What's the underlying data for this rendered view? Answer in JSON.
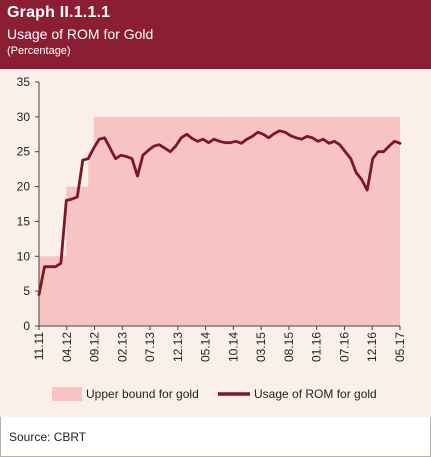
{
  "header": {
    "title": "Graph II.1.1.1",
    "subtitle": "Usage of ROM  for  Gold",
    "unit": "(Percentage)",
    "background": "#8b1e33"
  },
  "source": "Source: CBRT",
  "chart_data": {
    "type": "line",
    "xlabel": "",
    "ylabel": "",
    "ylim": [
      0,
      35
    ],
    "yticks": [
      0,
      5,
      10,
      15,
      20,
      25,
      30,
      35
    ],
    "x_range": [
      "2011-11",
      "2017-05"
    ],
    "xtick_labels": [
      "11.11",
      "04.12",
      "09.12",
      "02.13",
      "07.13",
      "12.13",
      "05.14",
      "10.14",
      "03.15",
      "08.15",
      "01.16",
      "07.16",
      "12.16",
      "05.17"
    ],
    "legend": {
      "placement": "bottom",
      "entries": [
        "Upper bound for gold",
        "Usage of ROM for gold"
      ]
    },
    "grid": false,
    "series": [
      {
        "name": "Upper bound for gold",
        "kind": "area-step",
        "color": "#f7c4c3",
        "x": [
          "2011-11",
          "2012-01",
          "2012-02",
          "2012-03",
          "2012-04",
          "2012-05",
          "2012-06",
          "2012-07",
          "2012-08",
          "2012-09",
          "2012-10",
          "2017-05"
        ],
        "values": [
          10,
          10,
          10,
          10,
          20,
          20,
          20,
          20,
          25,
          30,
          30,
          30
        ]
      },
      {
        "name": "Usage of ROM for gold",
        "kind": "line",
        "color": "#7b1728",
        "x": [
          "2011-11",
          "2011-12",
          "2012-01",
          "2012-02",
          "2012-03",
          "2012-04",
          "2012-05",
          "2012-06",
          "2012-07",
          "2012-08",
          "2012-09",
          "2012-10",
          "2012-11",
          "2012-12",
          "2013-01",
          "2013-02",
          "2013-03",
          "2013-04",
          "2013-05",
          "2013-06",
          "2013-07",
          "2013-08",
          "2013-09",
          "2013-10",
          "2013-11",
          "2013-12",
          "2014-01",
          "2014-02",
          "2014-03",
          "2014-04",
          "2014-05",
          "2014-06",
          "2014-07",
          "2014-08",
          "2014-09",
          "2014-10",
          "2014-11",
          "2014-12",
          "2015-01",
          "2015-02",
          "2015-03",
          "2015-04",
          "2015-05",
          "2015-06",
          "2015-07",
          "2015-08",
          "2015-09",
          "2015-10",
          "2015-11",
          "2015-12",
          "2016-01",
          "2016-02",
          "2016-03",
          "2016-04",
          "2016-05",
          "2016-06",
          "2016-07",
          "2016-08",
          "2016-09",
          "2016-10",
          "2016-11",
          "2016-12",
          "2017-01",
          "2017-02",
          "2017-03",
          "2017-04",
          "2017-05"
        ],
        "values": [
          4.5,
          8.5,
          8.5,
          8.5,
          9.0,
          18.0,
          18.2,
          18.5,
          23.8,
          24.0,
          25.5,
          26.8,
          27.0,
          25.5,
          24.0,
          24.5,
          24.3,
          24.0,
          21.5,
          24.5,
          25.2,
          25.8,
          26.0,
          25.5,
          25.0,
          25.8,
          27.0,
          27.5,
          26.9,
          26.5,
          26.8,
          26.3,
          26.8,
          26.5,
          26.3,
          26.3,
          26.5,
          26.2,
          26.8,
          27.2,
          27.8,
          27.5,
          27.0,
          27.6,
          28.0,
          27.8,
          27.3,
          27.0,
          26.8,
          27.2,
          27.0,
          26.5,
          26.8,
          26.2,
          26.5,
          26.0,
          25.0,
          24.0,
          22.0,
          21.0,
          19.5,
          24.0,
          25.0,
          25.0,
          25.8,
          26.5,
          26.2
        ]
      }
    ]
  }
}
